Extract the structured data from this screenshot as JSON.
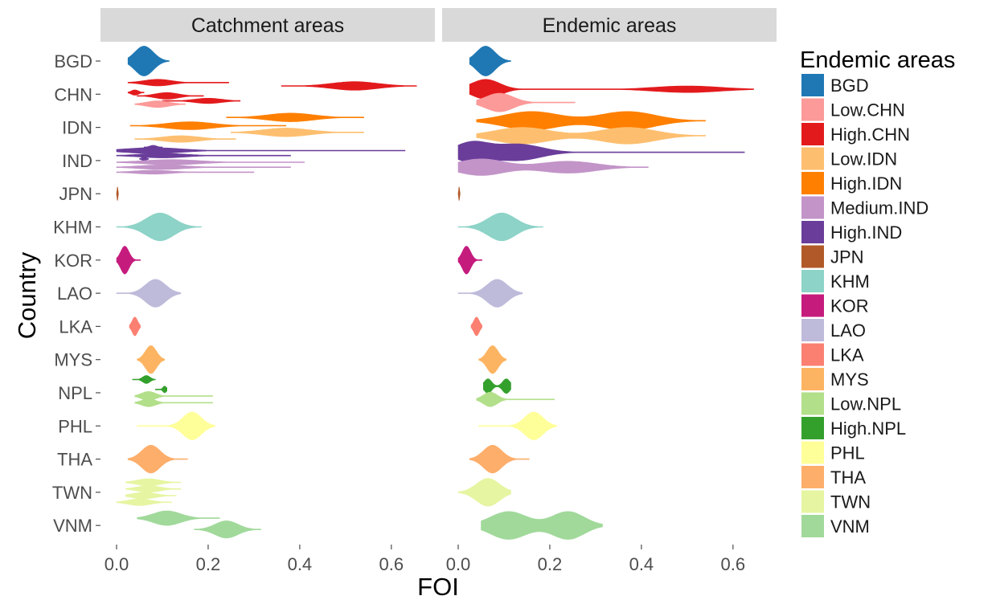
{
  "chart_data": {
    "type": "violin",
    "xlabel": "FOI",
    "ylabel": "Country",
    "xlim": [
      0,
      0.66
    ],
    "x_ticks": [
      "0.0",
      "0.2",
      "0.4",
      "0.6"
    ],
    "x_tick_values": [
      0,
      0.2,
      0.4,
      0.6
    ],
    "categories": [
      "BGD",
      "CHN",
      "IDN",
      "IND",
      "JPN",
      "KHM",
      "KOR",
      "LAO",
      "LKA",
      "MYS",
      "NPL",
      "PHL",
      "THA",
      "TWN",
      "VNM"
    ],
    "legend": {
      "title": "Endemic areas",
      "position": "right",
      "entries": [
        {
          "label": "BGD",
          "color": "#1f78b4"
        },
        {
          "label": "Low.CHN",
          "color": "#fb9a99"
        },
        {
          "label": "High.CHN",
          "color": "#e31a1c"
        },
        {
          "label": "Low.IDN",
          "color": "#fdbf6f"
        },
        {
          "label": "High.IDN",
          "color": "#ff7f00"
        },
        {
          "label": "Medium.IND",
          "color": "#c294c8"
        },
        {
          "label": "High.IND",
          "color": "#6a3d9a"
        },
        {
          "label": "JPN",
          "color": "#b15928"
        },
        {
          "label": "KHM",
          "color": "#8dd3c7"
        },
        {
          "label": "KOR",
          "color": "#c51b7d"
        },
        {
          "label": "LAO",
          "color": "#bebada"
        },
        {
          "label": "LKA",
          "color": "#fb8072"
        },
        {
          "label": "MYS",
          "color": "#fdb462"
        },
        {
          "label": "Low.NPL",
          "color": "#b2df8a"
        },
        {
          "label": "High.NPL",
          "color": "#33a02c"
        },
        {
          "label": "PHL",
          "color": "#ffff99"
        },
        {
          "label": "THA",
          "color": "#fdae6b"
        },
        {
          "label": "TWN",
          "color": "#e6f5a1"
        },
        {
          "label": "VNM",
          "color": "#a1d99b"
        }
      ]
    },
    "panels": [
      {
        "title": "Catchment areas",
        "violins": [
          {
            "country": "BGD",
            "group": "BGD",
            "offset": 0,
            "min": 0.025,
            "max": 0.115,
            "modes": [
              [
                0.06,
                0.45,
                0.02
              ]
            ]
          },
          {
            "country": "CHN",
            "group": "High.CHN",
            "offset": -0.35,
            "min": 0.025,
            "max": 0.245,
            "modes": [
              [
                0.09,
                0.1,
                0.03
              ]
            ]
          },
          {
            "country": "CHN",
            "group": "High.CHN",
            "offset": -0.25,
            "min": 0.36,
            "max": 0.655,
            "modes": [
              [
                0.52,
                0.13,
                0.05
              ]
            ]
          },
          {
            "country": "CHN",
            "group": "High.CHN",
            "offset": -0.05,
            "min": 0.025,
            "max": 0.06,
            "modes": [
              [
                0.04,
                0.08,
                0.008
              ]
            ]
          },
          {
            "country": "CHN",
            "group": "High.CHN",
            "offset": 0.05,
            "min": 0.045,
            "max": 0.19,
            "modes": [
              [
                0.11,
                0.1,
                0.025
              ]
            ]
          },
          {
            "country": "CHN",
            "group": "High.CHN",
            "offset": 0.2,
            "min": 0.1,
            "max": 0.27,
            "modes": [
              [
                0.2,
                0.08,
                0.03
              ]
            ]
          },
          {
            "country": "CHN",
            "group": "Low.CHN",
            "offset": 0.3,
            "min": 0.04,
            "max": 0.15,
            "modes": [
              [
                0.09,
                0.1,
                0.025
              ]
            ]
          },
          {
            "country": "IDN",
            "group": "High.IDN",
            "offset": -0.3,
            "min": 0.24,
            "max": 0.54,
            "modes": [
              [
                0.38,
                0.13,
                0.05
              ]
            ]
          },
          {
            "country": "IDN",
            "group": "High.IDN",
            "offset": -0.05,
            "min": 0.03,
            "max": 0.37,
            "modes": [
              [
                0.16,
                0.12,
                0.05
              ]
            ]
          },
          {
            "country": "IDN",
            "group": "Low.IDN",
            "offset": 0.15,
            "min": 0.25,
            "max": 0.54,
            "modes": [
              [
                0.37,
                0.13,
                0.05
              ]
            ]
          },
          {
            "country": "IDN",
            "group": "Low.IDN",
            "offset": 0.35,
            "min": 0.04,
            "max": 0.26,
            "modes": [
              [
                0.14,
                0.1,
                0.04
              ]
            ]
          },
          {
            "country": "IND",
            "group": "High.IND",
            "offset": -0.4,
            "min": 0.06,
            "max": 0.1,
            "modes": [
              [
                0.08,
                0.06,
                0.008
              ]
            ]
          },
          {
            "country": "IND",
            "group": "High.IND",
            "offset": -0.3,
            "min": 0.0,
            "max": 0.63,
            "modes": [
              [
                0.08,
                0.09,
                0.06
              ]
            ]
          },
          {
            "country": "IND",
            "group": "High.IND",
            "offset": -0.15,
            "min": 0.0,
            "max": 0.38,
            "modes": [
              [
                0.1,
                0.07,
                0.05
              ]
            ]
          },
          {
            "country": "IND",
            "group": "High.IND",
            "offset": -0.05,
            "min": 0.05,
            "max": 0.07,
            "modes": [
              [
                0.06,
                0.06,
                0.005
              ]
            ]
          },
          {
            "country": "IND",
            "group": "Medium.IND",
            "offset": 0.05,
            "min": 0.0,
            "max": 0.41,
            "modes": [
              [
                0.12,
                0.08,
                0.06
              ]
            ]
          },
          {
            "country": "IND",
            "group": "Medium.IND",
            "offset": 0.2,
            "min": 0.0,
            "max": 0.38,
            "modes": [
              [
                0.1,
                0.07,
                0.05
              ]
            ]
          },
          {
            "country": "IND",
            "group": "Medium.IND",
            "offset": 0.35,
            "min": 0.0,
            "max": 0.3,
            "modes": [
              [
                0.08,
                0.06,
                0.04
              ]
            ]
          },
          {
            "country": "JPN",
            "group": "JPN",
            "offset": 0,
            "min": 0.0,
            "max": 0.004,
            "modes": [
              [
                0.002,
                0.2,
                0.001
              ]
            ]
          },
          {
            "country": "KHM",
            "group": "KHM",
            "offset": 0,
            "min": 0.0,
            "max": 0.185,
            "modes": [
              [
                0.095,
                0.42,
                0.03
              ]
            ]
          },
          {
            "country": "KOR",
            "group": "KOR",
            "offset": 0,
            "min": 0.0,
            "max": 0.052,
            "modes": [
              [
                0.018,
                0.42,
                0.009
              ]
            ]
          },
          {
            "country": "LAO",
            "group": "LAO",
            "offset": 0,
            "min": 0.0,
            "max": 0.14,
            "modes": [
              [
                0.085,
                0.42,
                0.022
              ]
            ]
          },
          {
            "country": "LKA",
            "group": "LKA",
            "offset": 0,
            "min": 0.028,
            "max": 0.052,
            "modes": [
              [
                0.04,
                0.28,
                0.006
              ]
            ]
          },
          {
            "country": "MYS",
            "group": "MYS",
            "offset": 0,
            "min": 0.045,
            "max": 0.105,
            "modes": [
              [
                0.075,
                0.42,
                0.012
              ]
            ]
          },
          {
            "country": "NPL",
            "group": "High.NPL",
            "offset": -0.4,
            "min": 0.035,
            "max": 0.085,
            "modes": [
              [
                0.065,
                0.12,
                0.008
              ]
            ]
          },
          {
            "country": "NPL",
            "group": "High.NPL",
            "offset": -0.1,
            "min": 0.085,
            "max": 0.11,
            "modes": [
              [
                0.105,
                0.1,
                0.004
              ]
            ]
          },
          {
            "country": "NPL",
            "group": "Low.NPL",
            "offset": 0.1,
            "min": 0.04,
            "max": 0.21,
            "modes": [
              [
                0.07,
                0.14,
                0.015
              ]
            ]
          },
          {
            "country": "NPL",
            "group": "Low.NPL",
            "offset": 0.3,
            "min": 0.04,
            "max": 0.21,
            "modes": [
              [
                0.07,
                0.12,
                0.015
              ]
            ]
          },
          {
            "country": "PHL",
            "group": "PHL",
            "offset": 0,
            "min": 0.045,
            "max": 0.215,
            "modes": [
              [
                0.165,
                0.42,
                0.02
              ]
            ]
          },
          {
            "country": "THA",
            "group": "THA",
            "offset": 0,
            "min": 0.025,
            "max": 0.155,
            "modes": [
              [
                0.075,
                0.42,
                0.02
              ]
            ]
          },
          {
            "country": "TWN",
            "group": "TWN",
            "offset": -0.3,
            "min": 0.02,
            "max": 0.14,
            "modes": [
              [
                0.07,
                0.11,
                0.025
              ]
            ]
          },
          {
            "country": "TWN",
            "group": "TWN",
            "offset": -0.1,
            "min": 0.02,
            "max": 0.14,
            "modes": [
              [
                0.07,
                0.1,
                0.025
              ]
            ]
          },
          {
            "country": "TWN",
            "group": "TWN",
            "offset": 0.1,
            "min": 0.02,
            "max": 0.13,
            "modes": [
              [
                0.06,
                0.1,
                0.025
              ]
            ]
          },
          {
            "country": "TWN",
            "group": "TWN",
            "offset": 0.3,
            "min": 0.0,
            "max": 0.12,
            "modes": [
              [
                0.05,
                0.1,
                0.025
              ]
            ]
          },
          {
            "country": "VNM",
            "group": "VNM",
            "offset": -0.22,
            "min": 0.045,
            "max": 0.225,
            "modes": [
              [
                0.11,
                0.22,
                0.03
              ]
            ]
          },
          {
            "country": "VNM",
            "group": "VNM",
            "offset": 0.12,
            "min": 0.17,
            "max": 0.315,
            "modes": [
              [
                0.24,
                0.26,
                0.025
              ]
            ]
          }
        ]
      },
      {
        "title": "Endemic areas",
        "violins": [
          {
            "country": "BGD",
            "group": "BGD",
            "offset": 0,
            "min": 0.025,
            "max": 0.115,
            "modes": [
              [
                0.06,
                0.45,
                0.02
              ]
            ]
          },
          {
            "country": "CHN",
            "group": "High.CHN",
            "offset": -0.15,
            "min": 0.025,
            "max": 0.645,
            "modes": [
              [
                0.06,
                0.3,
                0.03
              ],
              [
                0.5,
                0.1,
                0.07
              ]
            ]
          },
          {
            "country": "CHN",
            "group": "Low.CHN",
            "offset": 0.25,
            "min": 0.04,
            "max": 0.255,
            "modes": [
              [
                0.09,
                0.28,
                0.03
              ]
            ]
          },
          {
            "country": "IDN",
            "group": "High.IDN",
            "offset": -0.2,
            "min": 0.04,
            "max": 0.54,
            "modes": [
              [
                0.16,
                0.28,
                0.06
              ],
              [
                0.37,
                0.28,
                0.06
              ]
            ]
          },
          {
            "country": "IDN",
            "group": "Low.IDN",
            "offset": 0.25,
            "min": 0.04,
            "max": 0.54,
            "modes": [
              [
                0.14,
                0.25,
                0.06
              ],
              [
                0.37,
                0.25,
                0.06
              ]
            ]
          },
          {
            "country": "IND",
            "group": "High.IND",
            "offset": -0.25,
            "min": 0.0,
            "max": 0.625,
            "modes": [
              [
                0.03,
                0.3,
                0.035
              ],
              [
                0.13,
                0.25,
                0.05
              ]
            ]
          },
          {
            "country": "IND",
            "group": "Medium.IND",
            "offset": 0.2,
            "min": 0.0,
            "max": 0.415,
            "modes": [
              [
                0.05,
                0.25,
                0.05
              ],
              [
                0.24,
                0.18,
                0.06
              ]
            ]
          },
          {
            "country": "JPN",
            "group": "JPN",
            "offset": 0,
            "min": 0.0,
            "max": 0.004,
            "modes": [
              [
                0.002,
                0.2,
                0.001
              ]
            ]
          },
          {
            "country": "KHM",
            "group": "KHM",
            "offset": 0,
            "min": 0.0,
            "max": 0.185,
            "modes": [
              [
                0.095,
                0.42,
                0.03
              ]
            ]
          },
          {
            "country": "KOR",
            "group": "KOR",
            "offset": 0,
            "min": 0.0,
            "max": 0.052,
            "modes": [
              [
                0.018,
                0.42,
                0.009
              ]
            ]
          },
          {
            "country": "LAO",
            "group": "LAO",
            "offset": 0,
            "min": 0.0,
            "max": 0.14,
            "modes": [
              [
                0.085,
                0.42,
                0.022
              ]
            ]
          },
          {
            "country": "LKA",
            "group": "LKA",
            "offset": 0,
            "min": 0.028,
            "max": 0.052,
            "modes": [
              [
                0.04,
                0.28,
                0.006
              ]
            ]
          },
          {
            "country": "MYS",
            "group": "MYS",
            "offset": 0,
            "min": 0.045,
            "max": 0.105,
            "modes": [
              [
                0.075,
                0.42,
                0.012
              ]
            ]
          },
          {
            "country": "NPL",
            "group": "High.NPL",
            "offset": -0.2,
            "min": 0.055,
            "max": 0.115,
            "modes": [
              [
                0.065,
                0.22,
                0.008
              ],
              [
                0.105,
                0.22,
                0.008
              ]
            ]
          },
          {
            "country": "NPL",
            "group": "Low.NPL",
            "offset": 0.2,
            "min": 0.04,
            "max": 0.21,
            "modes": [
              [
                0.07,
                0.22,
                0.015
              ]
            ]
          },
          {
            "country": "PHL",
            "group": "PHL",
            "offset": 0,
            "min": 0.045,
            "max": 0.215,
            "modes": [
              [
                0.165,
                0.42,
                0.02
              ]
            ]
          },
          {
            "country": "THA",
            "group": "THA",
            "offset": 0,
            "min": 0.025,
            "max": 0.155,
            "modes": [
              [
                0.075,
                0.42,
                0.02
              ]
            ]
          },
          {
            "country": "TWN",
            "group": "TWN",
            "offset": 0,
            "min": 0.0,
            "max": 0.115,
            "modes": [
              [
                0.065,
                0.42,
                0.025
              ]
            ]
          },
          {
            "country": "VNM",
            "group": "VNM",
            "offset": 0,
            "min": 0.05,
            "max": 0.315,
            "modes": [
              [
                0.11,
                0.42,
                0.04
              ],
              [
                0.24,
                0.42,
                0.035
              ]
            ]
          }
        ]
      }
    ]
  }
}
